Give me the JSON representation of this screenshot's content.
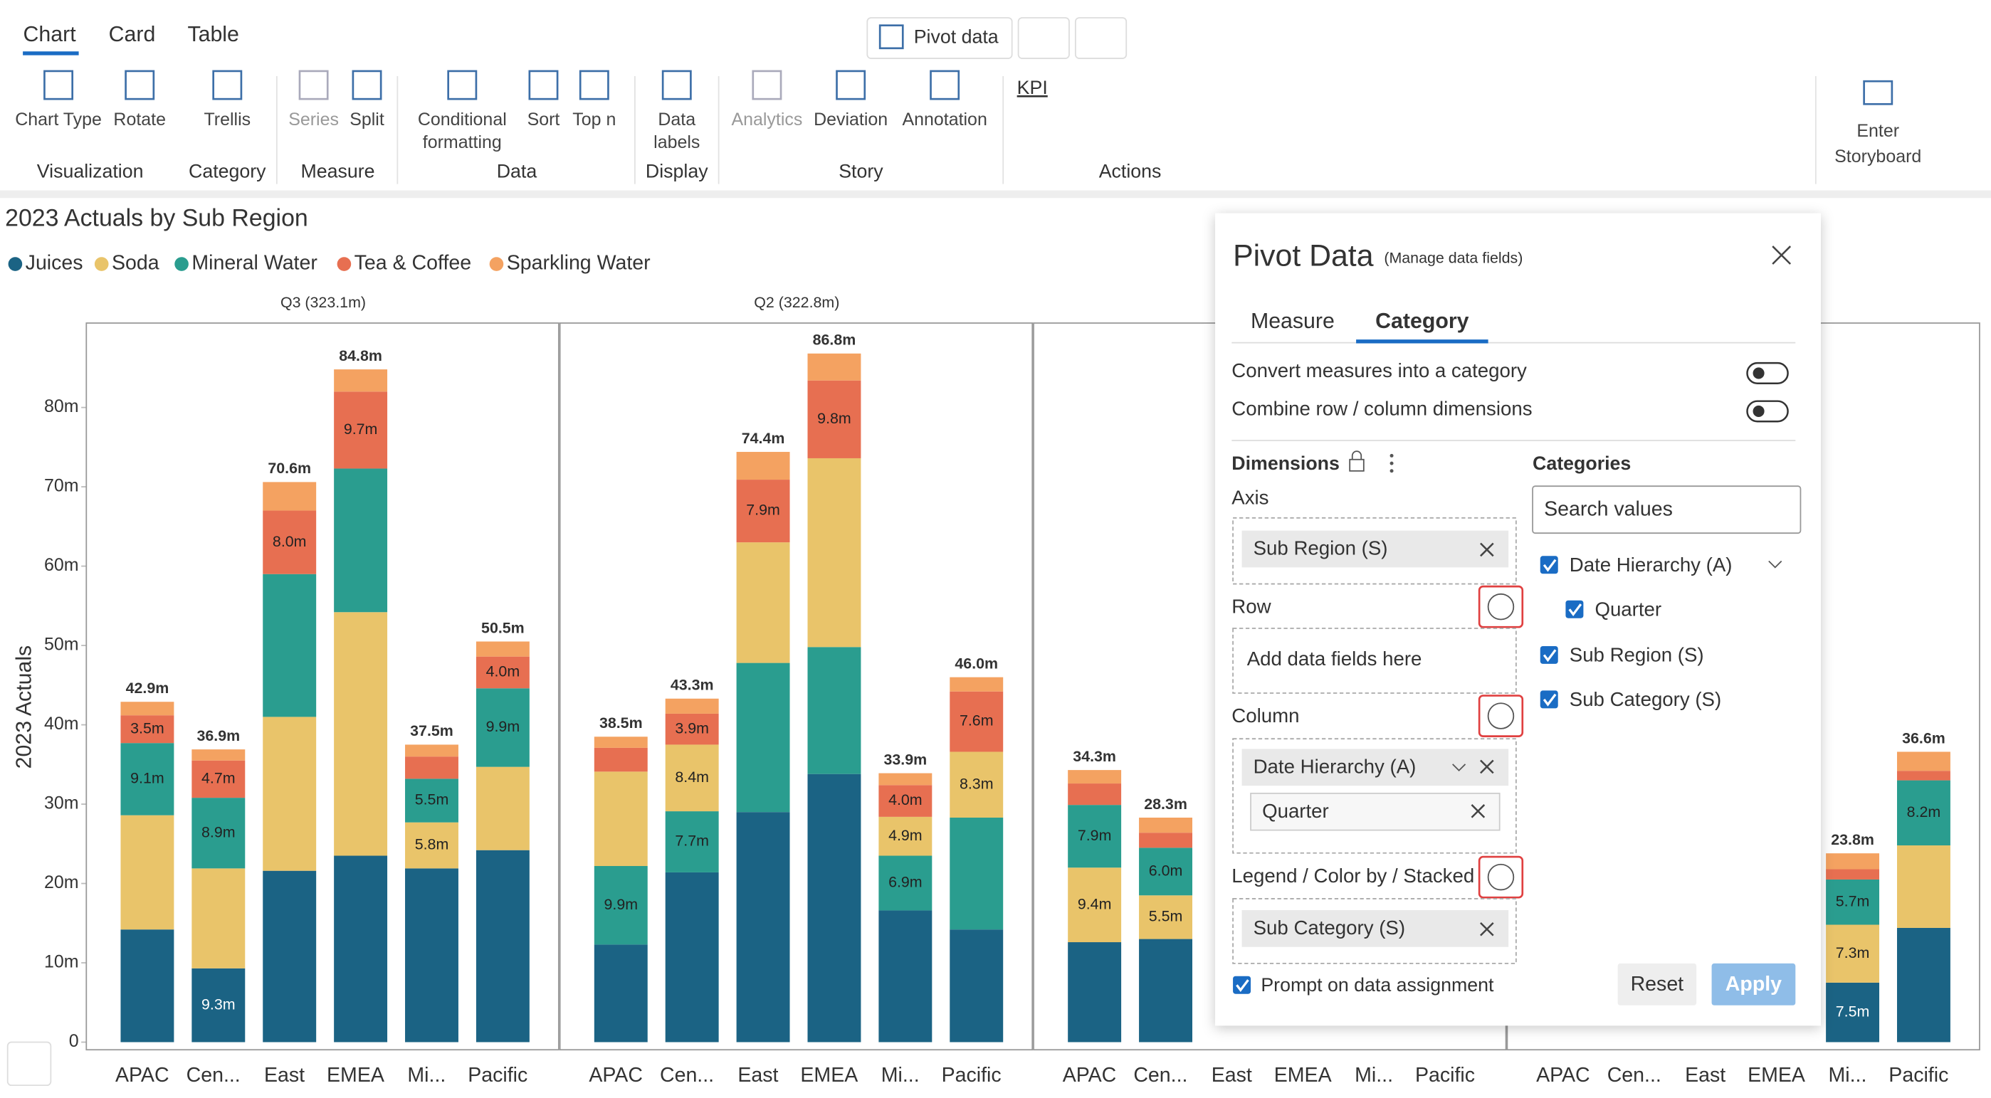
{
  "toolbar": {
    "tabs": [
      "Chart",
      "Card",
      "Table"
    ],
    "top_button": "Pivot data",
    "items": [
      [
        "Chart Type"
      ],
      [
        "Rotate"
      ],
      [
        "Trellis"
      ],
      [
        "Series"
      ],
      [
        "Split"
      ],
      [
        "Conditional",
        "formatting"
      ],
      [
        "Sort"
      ],
      [
        "Top n"
      ],
      [
        "Data",
        "labels"
      ],
      [
        "Analytics"
      ],
      [
        "Deviation"
      ],
      [
        "Annotation"
      ]
    ],
    "groups": [
      "Visualization",
      "Category",
      "Measure",
      "Data",
      "Display",
      "Story",
      "Actions"
    ],
    "kpi": "KPI",
    "storyboard": [
      "Enter",
      "Storyboard"
    ]
  },
  "chart_data": {
    "type": "bar",
    "stacked": true,
    "title": "2023 Actuals by Sub Region",
    "ylabel": "2023 Actuals",
    "categories": [
      "APAC",
      "Cen...",
      "East",
      "EMEA",
      "Mi...",
      "Pacific"
    ],
    "ylim": [
      0,
      90
    ],
    "yticks": [
      0,
      {
        "value": 10,
        "label": "10m"
      },
      {
        "value": 20,
        "label": "20m"
      },
      {
        "value": 30,
        "label": "30m"
      },
      {
        "value": 40,
        "label": "40m"
      },
      {
        "value": 50,
        "label": "50m"
      },
      {
        "value": 60,
        "label": "60m"
      },
      {
        "value": 70,
        "label": "70m"
      },
      {
        "value": 80,
        "label": "80m"
      }
    ],
    "series": [
      {
        "name": "Juices",
        "color": "#1b6384"
      },
      {
        "name": "Soda",
        "color": "#e9c46a"
      },
      {
        "name": "Mineral Water",
        "color": "#2a9d8f"
      },
      {
        "name": "Tea & Coffee",
        "color": "#e76f51"
      },
      {
        "name": "Sparkling Water",
        "color": "#f4a261"
      }
    ],
    "panels": [
      {
        "title": "Q3 (323.1m)",
        "totals": [
          42.9,
          36.9,
          70.6,
          84.8,
          37.5,
          50.5
        ],
        "total_labels": [
          "42.9m",
          "36.9m",
          "70.6m",
          "84.8m",
          "37.5m",
          "50.5m"
        ],
        "series": [
          {
            "name": "Juices",
            "values": [
              14.2,
              9.3,
              21.6,
              23.5,
              21.9,
              24.2
            ],
            "value_labels": [
              null,
              "9.3m",
              null,
              null,
              null,
              null
            ]
          },
          {
            "name": "Soda",
            "values": [
              14.4,
              12.6,
              19.4,
              30.7,
              5.8,
              10.5
            ],
            "value_labels": [
              null,
              null,
              null,
              null,
              "5.8m",
              null
            ]
          },
          {
            "name": "Mineral Water",
            "values": [
              9.1,
              8.9,
              18.0,
              18.1,
              5.5,
              9.9
            ],
            "value_labels": [
              "9.1m",
              "8.9m",
              null,
              null,
              "5.5m",
              "9.9m"
            ]
          },
          {
            "name": "Tea & Coffee",
            "values": [
              3.5,
              4.7,
              8.0,
              9.7,
              2.8,
              4.0
            ],
            "value_labels": [
              "3.5m",
              "4.7m",
              "8.0m",
              "9.7m",
              null,
              "4.0m"
            ]
          },
          {
            "name": "Sparkling Water",
            "values": [
              1.7,
              1.4,
              3.6,
              2.8,
              1.5,
              1.9
            ],
            "value_labels": [
              null,
              null,
              null,
              null,
              null,
              null
            ]
          }
        ]
      },
      {
        "title": "Q2 (322.8m)",
        "totals": [
          38.5,
          43.3,
          74.4,
          86.8,
          33.9,
          46.0
        ],
        "total_labels": [
          "38.5m",
          "43.3m",
          "74.4m",
          "86.8m",
          "33.9m",
          "46.0m"
        ],
        "series": [
          {
            "name": "Juices",
            "values": [
              12.3,
              21.4,
              29.0,
              33.8,
              16.6,
              14.2
            ],
            "value_labels": [
              null,
              null,
              null,
              null,
              null,
              null
            ]
          },
          {
            "name": "Mineral Water",
            "values": [
              9.9,
              7.7,
              18.8,
              16.0,
              6.9,
              14.1
            ],
            "value_labels": [
              "9.9m",
              "7.7m",
              null,
              null,
              "6.9m",
              null
            ]
          },
          {
            "name": "Soda",
            "values": [
              11.9,
              8.4,
              15.2,
              23.8,
              4.9,
              8.3
            ],
            "value_labels": [
              null,
              "8.4m",
              null,
              null,
              "4.9m",
              "8.3m"
            ]
          },
          {
            "name": "Tea & Coffee",
            "values": [
              3.0,
              3.9,
              7.9,
              9.8,
              4.0,
              7.6
            ],
            "value_labels": [
              null,
              "3.9m",
              "7.9m",
              "9.8m",
              "4.0m",
              "7.6m"
            ]
          },
          {
            "name": "Sparkling Water",
            "values": [
              1.4,
              1.9,
              3.5,
              3.4,
              1.5,
              1.8
            ],
            "value_labels": [
              null,
              null,
              null,
              null,
              null,
              null
            ]
          }
        ]
      },
      {
        "title": null,
        "totals": [
          34.3,
          28.3,
          null,
          null,
          null,
          null
        ],
        "total_labels": [
          "34.3m",
          "28.3m",
          null,
          null,
          null,
          null
        ],
        "series": [
          {
            "name": "Juices",
            "values": [
              12.6,
              13.0,
              null,
              null,
              null,
              null
            ],
            "value_labels": [
              null,
              null,
              null,
              null,
              null,
              null
            ]
          },
          {
            "name": "Soda",
            "values": [
              9.4,
              5.5,
              null,
              null,
              null,
              null
            ],
            "value_labels": [
              "9.4m",
              "5.5m",
              null,
              null,
              null,
              null
            ]
          },
          {
            "name": "Mineral Water",
            "values": [
              7.9,
              6.0,
              null,
              null,
              null,
              null
            ],
            "value_labels": [
              "7.9m",
              "6.0m",
              null,
              null,
              null,
              null
            ]
          },
          {
            "name": "Tea & Coffee",
            "values": [
              2.7,
              1.9,
              null,
              null,
              null,
              null
            ],
            "value_labels": [
              null,
              null,
              null,
              null,
              null,
              null
            ]
          },
          {
            "name": "Sparkling Water",
            "values": [
              1.7,
              1.9,
              null,
              null,
              null,
              null
            ],
            "value_labels": [
              null,
              null,
              null,
              null,
              null,
              null
            ]
          }
        ]
      },
      {
        "title": null,
        "totals": [
          null,
          null,
          null,
          null,
          23.8,
          36.6
        ],
        "total_labels": [
          null,
          null,
          null,
          null,
          "23.8m",
          "36.6m"
        ],
        "series": [
          {
            "name": "Juices",
            "values": [
              null,
              null,
              null,
              null,
              7.5,
              14.4
            ],
            "value_labels": [
              null,
              null,
              null,
              null,
              "7.5m",
              null
            ]
          },
          {
            "name": "Soda",
            "values": [
              null,
              null,
              null,
              null,
              7.3,
              10.4
            ],
            "value_labels": [
              null,
              null,
              null,
              null,
              "7.3m",
              null
            ]
          },
          {
            "name": "Mineral Water",
            "values": [
              null,
              null,
              null,
              null,
              5.7,
              8.2
            ],
            "value_labels": [
              null,
              null,
              null,
              null,
              "5.7m",
              "8.2m"
            ]
          },
          {
            "name": "Tea & Coffee",
            "values": [
              null,
              null,
              null,
              null,
              1.3,
              1.2
            ],
            "value_labels": [
              null,
              null,
              null,
              null,
              null,
              null
            ]
          },
          {
            "name": "Sparkling Water",
            "values": [
              null,
              null,
              null,
              null,
              2.0,
              2.4
            ],
            "value_labels": [
              null,
              null,
              null,
              null,
              null,
              null
            ]
          }
        ]
      }
    ]
  },
  "dialog": {
    "title": "Pivot Data",
    "subtitle": "(Manage data fields)",
    "tabs": [
      "Measure",
      "Category"
    ],
    "toggles": [
      "Convert measures into a category",
      "Combine row / column dimensions"
    ],
    "dimensions": "Dimensions",
    "axis": {
      "label": "Axis",
      "chip": "Sub Region (S)"
    },
    "row": {
      "label": "Row",
      "placeholder": "Add data fields here"
    },
    "column": {
      "label": "Column",
      "chip": "Date Hierarchy (A)",
      "sub_chip": "Quarter"
    },
    "legend": {
      "label": "Legend / Color by / Stacked",
      "chip": "Sub Category (S)"
    },
    "categories": {
      "title": "Categories",
      "search": "Search values",
      "items": [
        "Date Hierarchy (A)",
        "Quarter",
        "Sub Region (S)",
        "Sub Category (S)"
      ]
    },
    "prompt": "Prompt on data assignment",
    "buttons": [
      "Reset",
      "Apply"
    ]
  }
}
